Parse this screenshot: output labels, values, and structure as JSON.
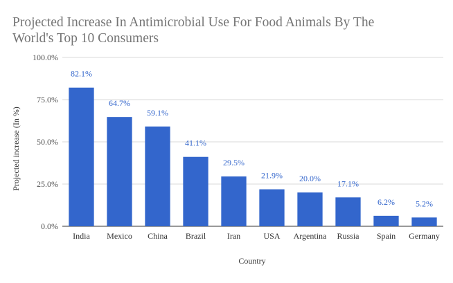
{
  "chart_data": {
    "type": "bar",
    "title_lines": [
      "Projected Increase In Antimicrobial Use For Food Animals By The",
      "World's Top 10 Consumers"
    ],
    "xlabel": "Country",
    "ylabel": "Projected increase (In %)",
    "categories": [
      "India",
      "Mexico",
      "China",
      "Brazil",
      "Iran",
      "USA",
      "Argentina",
      "Russia",
      "Spain",
      "Germany"
    ],
    "values": [
      82.1,
      64.7,
      59.1,
      41.1,
      29.5,
      21.9,
      20.0,
      17.1,
      6.2,
      5.2
    ],
    "data_labels": [
      "82.1%",
      "64.7%",
      "59.1%",
      "41.1%",
      "29.5%",
      "21.9%",
      "20.0%",
      "17.1%",
      "6.2%",
      "5.2%"
    ],
    "yticks": [
      0,
      25,
      50,
      75,
      100
    ],
    "ytick_labels": [
      "0.0%",
      "25.0%",
      "50.0%",
      "75.0%",
      "100.0%"
    ],
    "ylim": [
      0,
      100
    ],
    "grid": true,
    "legend": "none",
    "bar_color": "#3366cc",
    "label_color": "#3366cc",
    "title_color": "#757575"
  }
}
